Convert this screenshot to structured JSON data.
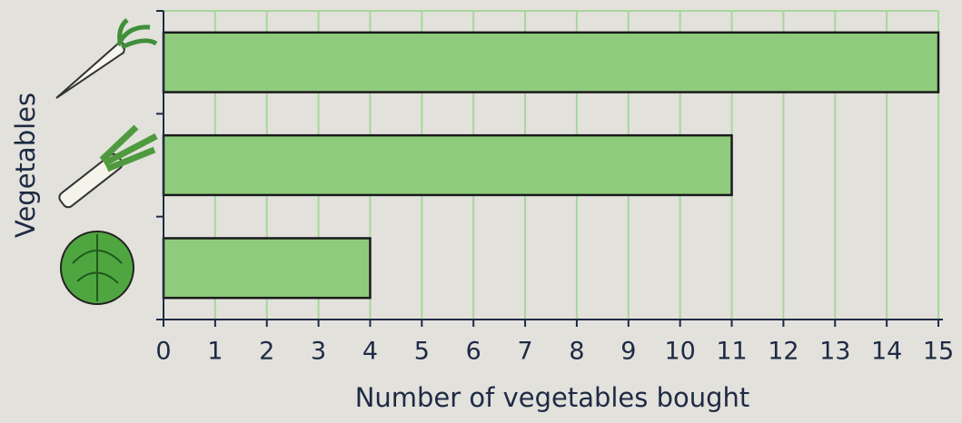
{
  "chart_data": {
    "type": "bar",
    "orientation": "horizontal",
    "x_label": "Number of vegetables bought",
    "y_label": "Vegetables",
    "categories": [
      null,
      null,
      null
    ],
    "values": [
      15,
      11,
      4
    ],
    "color": "#8fcb7c",
    "xlim": [
      0,
      15
    ],
    "xticks": [
      0,
      1,
      2,
      3,
      4,
      5,
      6,
      7,
      8,
      9,
      10,
      11,
      12,
      13,
      14,
      15
    ],
    "grid": true
  }
}
